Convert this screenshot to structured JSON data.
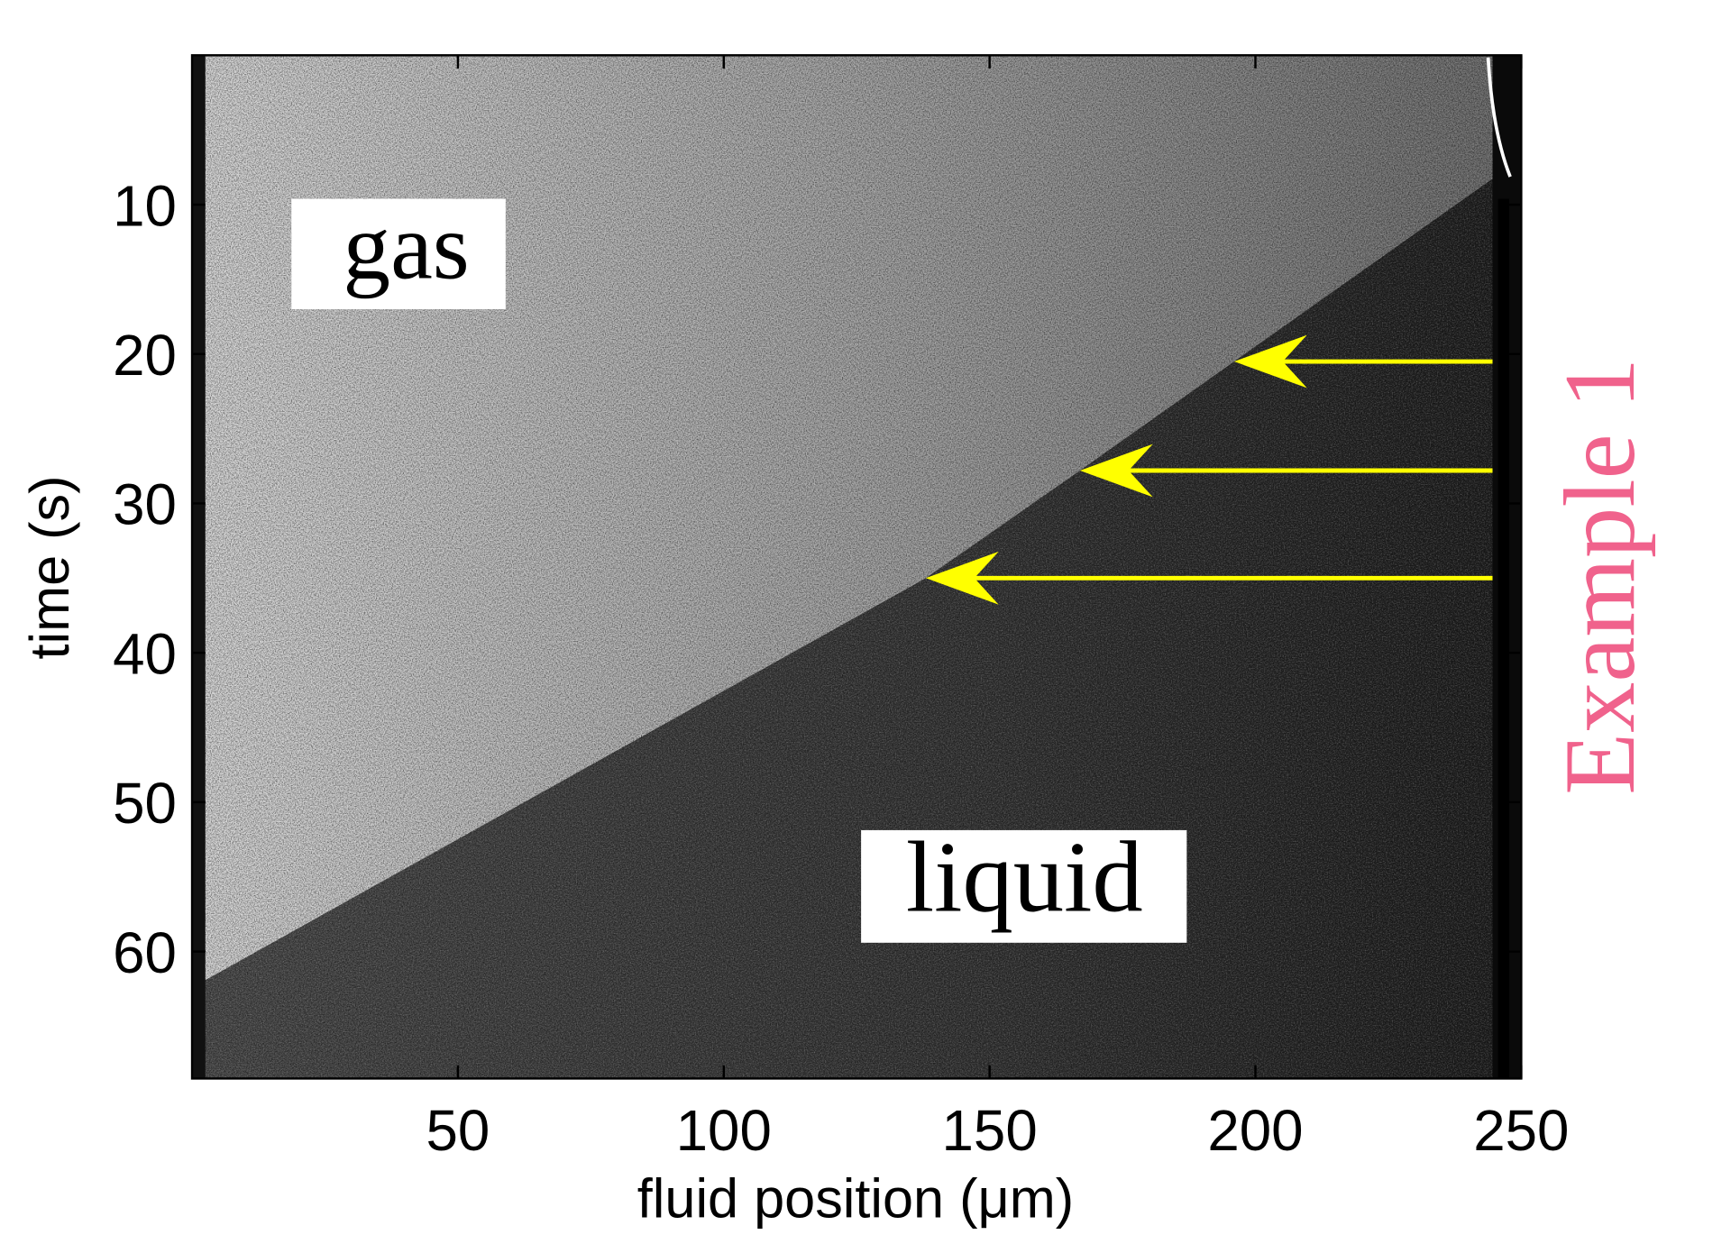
{
  "chart_data": {
    "type": "kymograph",
    "x_label": "fluid position (μm)",
    "y_label": "time (s)",
    "xlim": [
      0,
      250
    ],
    "ylim": [
      0,
      68.5
    ],
    "xticks": [
      50,
      100,
      150,
      200,
      250
    ],
    "yticks": [
      10,
      20,
      30,
      40,
      50,
      60
    ],
    "y_inverted": true,
    "annotations": [
      "gas",
      "liquid"
    ],
    "side_label": "Example 1",
    "side_label_color": "#f0628c",
    "arrow_color": "#ffff00",
    "arrows": [
      {
        "x": 196,
        "y": 20.5
      },
      {
        "x": 167,
        "y": 27.8
      },
      {
        "x": 138,
        "y": 35
      }
    ]
  }
}
